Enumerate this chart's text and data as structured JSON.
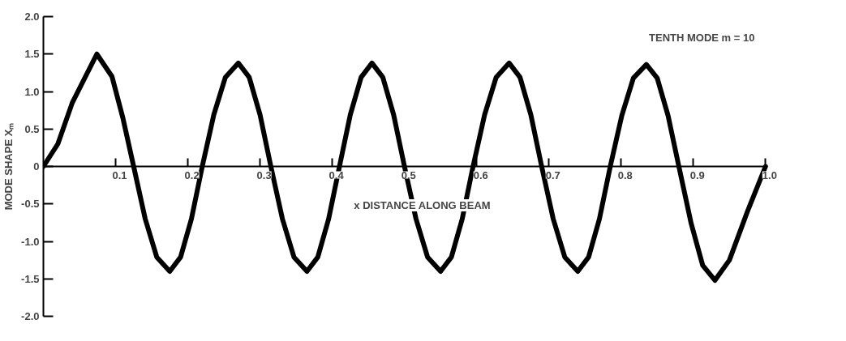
{
  "chart_data": {
    "type": "line",
    "xlabel": "x    DISTANCE ALONG BEAM",
    "ylabel": "MODE SHAPE Xₘ",
    "annotations": [
      "TENTH MODE m = 10"
    ],
    "x": [
      0,
      0.02,
      0.04,
      0.074,
      0.095,
      0.11,
      0.125,
      0.141,
      0.157,
      0.175,
      0.19,
      0.205,
      0.22,
      0.236,
      0.252,
      0.27,
      0.285,
      0.3,
      0.315,
      0.331,
      0.347,
      0.365,
      0.38,
      0.395,
      0.41,
      0.425,
      0.44,
      0.455,
      0.47,
      0.485,
      0.5,
      0.516,
      0.532,
      0.55,
      0.565,
      0.58,
      0.595,
      0.611,
      0.627,
      0.645,
      0.66,
      0.675,
      0.69,
      0.706,
      0.722,
      0.74,
      0.755,
      0.77,
      0.785,
      0.801,
      0.817,
      0.835,
      0.85,
      0.865,
      0.88,
      0.897,
      0.913,
      0.93,
      0.95,
      0.975,
      1.0
    ],
    "series": [
      {
        "color": "#000000",
        "values": [
          0,
          0.3,
          0.85,
          1.5,
          1.2,
          0.65,
          0,
          -0.7,
          -1.21,
          -1.4,
          -1.21,
          -0.7,
          0,
          0.69,
          1.19,
          1.38,
          1.19,
          0.69,
          0,
          -0.7,
          -1.21,
          -1.4,
          -1.21,
          -0.7,
          0,
          0.69,
          1.19,
          1.38,
          1.19,
          0.69,
          0,
          -0.7,
          -1.21,
          -1.4,
          -1.21,
          -0.7,
          0,
          0.69,
          1.19,
          1.38,
          1.19,
          0.69,
          0,
          -0.7,
          -1.21,
          -1.4,
          -1.21,
          -0.7,
          0,
          0.68,
          1.18,
          1.36,
          1.18,
          0.68,
          0,
          -0.76,
          -1.32,
          -1.52,
          -1.25,
          -0.6,
          0
        ]
      }
    ],
    "xlim": [
      0,
      1.0
    ],
    "ylim": [
      -2.0,
      2.0
    ],
    "xticks": [
      0.1,
      0.2,
      0.3,
      0.4,
      0.5,
      0.6,
      0.7,
      0.8,
      0.9,
      {
        "value": 1.0,
        "label": "1.0"
      }
    ],
    "yticks": [
      {
        "value": 2,
        "label": "2.0"
      },
      1.5,
      {
        "value": 1,
        "label": "1.0"
      },
      0.5,
      0,
      -0.5,
      {
        "value": -1,
        "label": "-1.0"
      },
      -1.5,
      {
        "value": -2,
        "label": "-2.0"
      }
    ],
    "grid": false,
    "marker": "none",
    "line_style": "solid"
  }
}
